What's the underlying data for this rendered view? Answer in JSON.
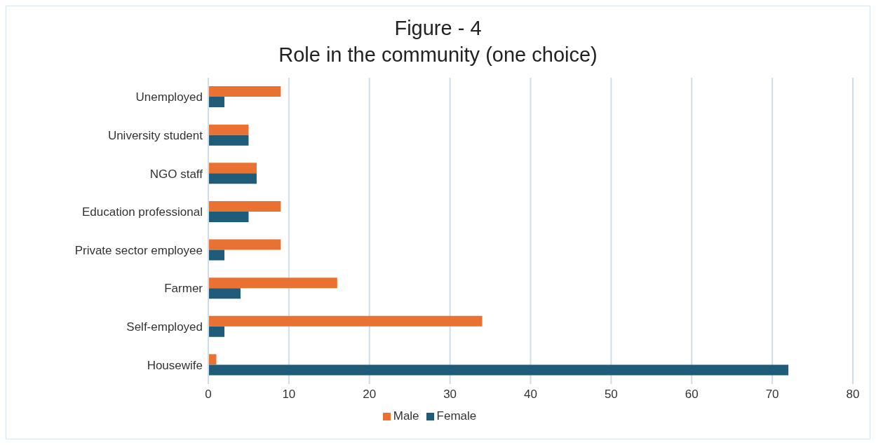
{
  "chart_data": {
    "type": "bar",
    "orientation": "horizontal",
    "title": "Figure - 4",
    "subtitle": "Role in the community (one choice)",
    "categories": [
      "Unemployed",
      "University student",
      "NGO staff",
      "Education professional",
      "Private sector employee",
      "Farmer",
      "Self-employed",
      "Housewife"
    ],
    "series": [
      {
        "name": "Male",
        "color": "#e97132",
        "values": [
          9,
          5,
          6,
          9,
          9,
          16,
          34,
          1
        ]
      },
      {
        "name": "Female",
        "color": "#1f5c7a",
        "values": [
          2,
          5,
          6,
          5,
          2,
          4,
          2,
          72
        ]
      }
    ],
    "xlim": [
      0,
      80
    ],
    "xticks": [
      0,
      10,
      20,
      30,
      40,
      50,
      60,
      70,
      80
    ],
    "grid": "x",
    "legend": "bottom"
  }
}
